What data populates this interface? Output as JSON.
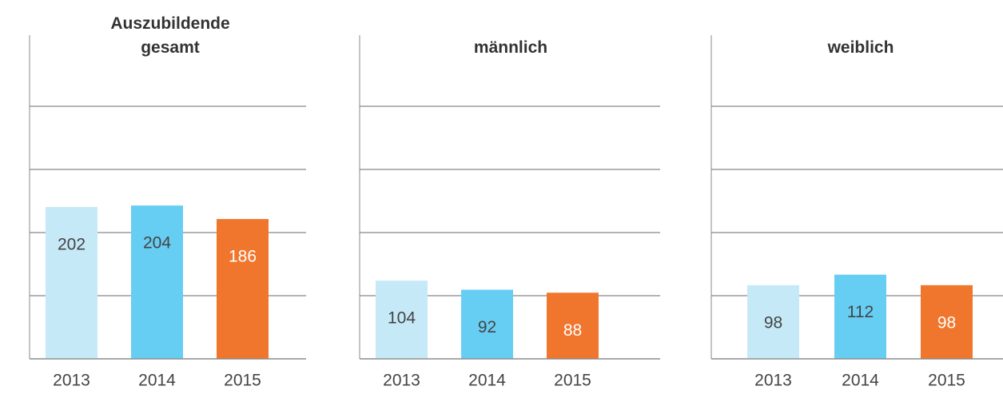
{
  "chart_data": [
    {
      "type": "bar",
      "title": "Auszubildende gesamt",
      "categories": [
        "2013",
        "2014",
        "2015"
      ],
      "values": [
        202,
        204,
        186
      ],
      "colors": [
        "#c6e9f8",
        "#66cef3",
        "#f1762d"
      ],
      "ylim": [
        0,
        420
      ],
      "yticks": [
        0,
        84,
        168,
        252,
        336
      ],
      "grid": true
    },
    {
      "type": "bar",
      "title": "männlich",
      "categories": [
        "2013",
        "2014",
        "2015"
      ],
      "values": [
        104,
        92,
        88
      ],
      "colors": [
        "#c6e9f8",
        "#66cef3",
        "#f1762d"
      ],
      "ylim": [
        0,
        420
      ],
      "yticks": [
        0,
        84,
        168,
        252,
        336
      ],
      "grid": true
    },
    {
      "type": "bar",
      "title": "weiblich",
      "categories": [
        "2013",
        "2014",
        "2015"
      ],
      "values": [
        98,
        112,
        98
      ],
      "colors": [
        "#c6e9f8",
        "#66cef3",
        "#f1762d"
      ],
      "ylim": [
        0,
        420
      ],
      "yticks": [
        0,
        84,
        168,
        252,
        336
      ],
      "grid": true
    }
  ]
}
